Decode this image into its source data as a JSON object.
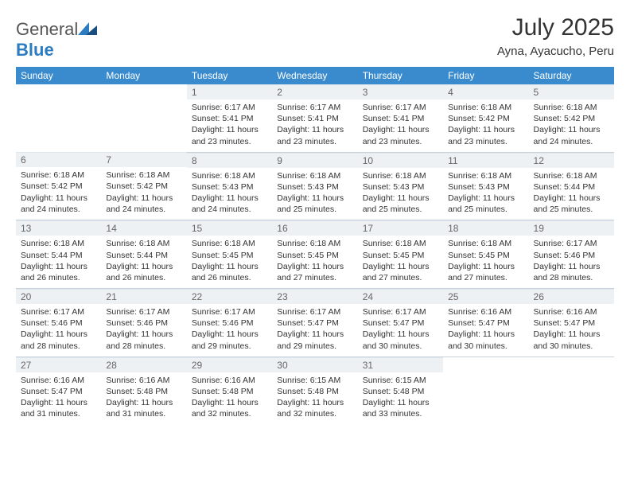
{
  "brand": {
    "word1": "General",
    "word2": "Blue"
  },
  "title": "July 2025",
  "location": "Ayna, Ayacucho, Peru",
  "dayNames": [
    "Sunday",
    "Monday",
    "Tuesday",
    "Wednesday",
    "Thursday",
    "Friday",
    "Saturday"
  ],
  "colors": {
    "header_bg": "#3a8bce",
    "header_text": "#ffffff",
    "daynum_bg": "#eef1f4",
    "border": "#c7d2dc",
    "brand_blue": "#2d7cc1",
    "brand_dark": "#1a4e80"
  },
  "weeks": [
    [
      {
        "n": "",
        "sr": "",
        "ss": "",
        "dl": ""
      },
      {
        "n": "",
        "sr": "",
        "ss": "",
        "dl": ""
      },
      {
        "n": "1",
        "sr": "6:17 AM",
        "ss": "5:41 PM",
        "dl": "11 hours and 23 minutes."
      },
      {
        "n": "2",
        "sr": "6:17 AM",
        "ss": "5:41 PM",
        "dl": "11 hours and 23 minutes."
      },
      {
        "n": "3",
        "sr": "6:17 AM",
        "ss": "5:41 PM",
        "dl": "11 hours and 23 minutes."
      },
      {
        "n": "4",
        "sr": "6:18 AM",
        "ss": "5:42 PM",
        "dl": "11 hours and 23 minutes."
      },
      {
        "n": "5",
        "sr": "6:18 AM",
        "ss": "5:42 PM",
        "dl": "11 hours and 24 minutes."
      }
    ],
    [
      {
        "n": "6",
        "sr": "6:18 AM",
        "ss": "5:42 PM",
        "dl": "11 hours and 24 minutes."
      },
      {
        "n": "7",
        "sr": "6:18 AM",
        "ss": "5:42 PM",
        "dl": "11 hours and 24 minutes."
      },
      {
        "n": "8",
        "sr": "6:18 AM",
        "ss": "5:43 PM",
        "dl": "11 hours and 24 minutes."
      },
      {
        "n": "9",
        "sr": "6:18 AM",
        "ss": "5:43 PM",
        "dl": "11 hours and 25 minutes."
      },
      {
        "n": "10",
        "sr": "6:18 AM",
        "ss": "5:43 PM",
        "dl": "11 hours and 25 minutes."
      },
      {
        "n": "11",
        "sr": "6:18 AM",
        "ss": "5:43 PM",
        "dl": "11 hours and 25 minutes."
      },
      {
        "n": "12",
        "sr": "6:18 AM",
        "ss": "5:44 PM",
        "dl": "11 hours and 25 minutes."
      }
    ],
    [
      {
        "n": "13",
        "sr": "6:18 AM",
        "ss": "5:44 PM",
        "dl": "11 hours and 26 minutes."
      },
      {
        "n": "14",
        "sr": "6:18 AM",
        "ss": "5:44 PM",
        "dl": "11 hours and 26 minutes."
      },
      {
        "n": "15",
        "sr": "6:18 AM",
        "ss": "5:45 PM",
        "dl": "11 hours and 26 minutes."
      },
      {
        "n": "16",
        "sr": "6:18 AM",
        "ss": "5:45 PM",
        "dl": "11 hours and 27 minutes."
      },
      {
        "n": "17",
        "sr": "6:18 AM",
        "ss": "5:45 PM",
        "dl": "11 hours and 27 minutes."
      },
      {
        "n": "18",
        "sr": "6:18 AM",
        "ss": "5:45 PM",
        "dl": "11 hours and 27 minutes."
      },
      {
        "n": "19",
        "sr": "6:17 AM",
        "ss": "5:46 PM",
        "dl": "11 hours and 28 minutes."
      }
    ],
    [
      {
        "n": "20",
        "sr": "6:17 AM",
        "ss": "5:46 PM",
        "dl": "11 hours and 28 minutes."
      },
      {
        "n": "21",
        "sr": "6:17 AM",
        "ss": "5:46 PM",
        "dl": "11 hours and 28 minutes."
      },
      {
        "n": "22",
        "sr": "6:17 AM",
        "ss": "5:46 PM",
        "dl": "11 hours and 29 minutes."
      },
      {
        "n": "23",
        "sr": "6:17 AM",
        "ss": "5:47 PM",
        "dl": "11 hours and 29 minutes."
      },
      {
        "n": "24",
        "sr": "6:17 AM",
        "ss": "5:47 PM",
        "dl": "11 hours and 30 minutes."
      },
      {
        "n": "25",
        "sr": "6:16 AM",
        "ss": "5:47 PM",
        "dl": "11 hours and 30 minutes."
      },
      {
        "n": "26",
        "sr": "6:16 AM",
        "ss": "5:47 PM",
        "dl": "11 hours and 30 minutes."
      }
    ],
    [
      {
        "n": "27",
        "sr": "6:16 AM",
        "ss": "5:47 PM",
        "dl": "11 hours and 31 minutes."
      },
      {
        "n": "28",
        "sr": "6:16 AM",
        "ss": "5:48 PM",
        "dl": "11 hours and 31 minutes."
      },
      {
        "n": "29",
        "sr": "6:16 AM",
        "ss": "5:48 PM",
        "dl": "11 hours and 32 minutes."
      },
      {
        "n": "30",
        "sr": "6:15 AM",
        "ss": "5:48 PM",
        "dl": "11 hours and 32 minutes."
      },
      {
        "n": "31",
        "sr": "6:15 AM",
        "ss": "5:48 PM",
        "dl": "11 hours and 33 minutes."
      },
      {
        "n": "",
        "sr": "",
        "ss": "",
        "dl": ""
      },
      {
        "n": "",
        "sr": "",
        "ss": "",
        "dl": ""
      }
    ]
  ]
}
